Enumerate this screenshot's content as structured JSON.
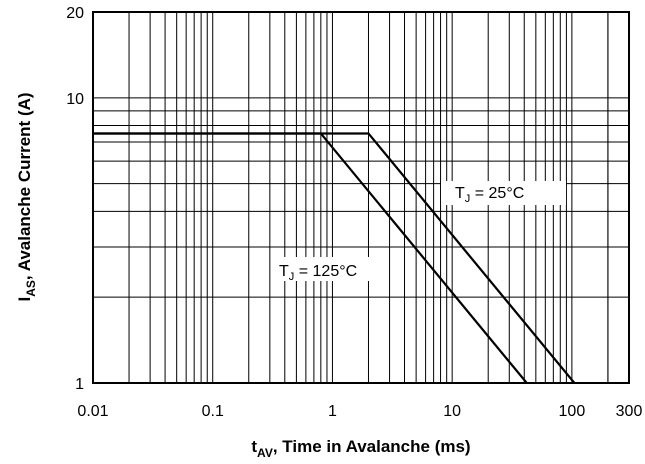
{
  "chart_data": {
    "type": "line",
    "x_scale": "log",
    "y_scale": "log",
    "xlim": [
      0.01,
      300
    ],
    "ylim": [
      1,
      20
    ],
    "grid": true,
    "x_ticks": [
      "0.01",
      "0.1",
      "1",
      "10",
      "100",
      "300"
    ],
    "y_ticks": [
      "1",
      "10",
      "20"
    ],
    "xlabel": {
      "main": "t",
      "sub": "AV",
      "rest": ", Time in Avalanche (ms)"
    },
    "ylabel": {
      "main": "I",
      "sub": "AS",
      "rest": ", Avalanche Current (A)"
    },
    "series": [
      {
        "name": "TJ = 125°C",
        "label": {
          "main": "T",
          "sub": "J",
          "rest": " = 125°C"
        },
        "x": [
          0.01,
          0.8,
          42
        ],
        "y": [
          7.5,
          7.5,
          1
        ]
      },
      {
        "name": "TJ = 25°C",
        "label": {
          "main": "T",
          "sub": "J",
          "rest": " = 25°C"
        },
        "x": [
          0.01,
          2,
          105
        ],
        "y": [
          7.5,
          7.5,
          1
        ]
      }
    ]
  }
}
